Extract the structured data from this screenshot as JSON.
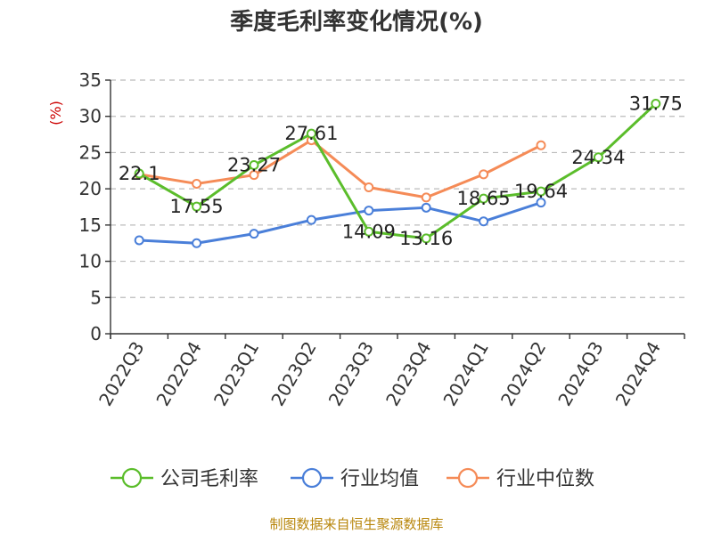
{
  "chart_data": {
    "type": "line",
    "title": "季度毛利率变化情况(%)",
    "ylabel": "(%)",
    "ylim": [
      0,
      35
    ],
    "yticks": [
      0,
      5,
      10,
      15,
      20,
      25,
      30,
      35
    ],
    "grid": "horizontal dashed",
    "legend_position": "bottom",
    "categories": [
      "2022Q3",
      "2022Q4",
      "2023Q1",
      "2023Q2",
      "2023Q3",
      "2023Q4",
      "2024Q1",
      "2024Q2",
      "2024Q3",
      "2024Q4"
    ],
    "series": [
      {
        "name": "公司毛利率",
        "color": "#5bbd2b",
        "values": [
          22.1,
          17.55,
          23.27,
          27.61,
          14.09,
          13.16,
          18.65,
          19.64,
          24.34,
          31.75
        ],
        "labels": [
          "22.1",
          "17.55",
          "23.27",
          "27.61",
          "14.09",
          "13.16",
          "18.65",
          "19.64",
          "24.34",
          "31.75"
        ]
      },
      {
        "name": "行业均值",
        "color": "#4a7fd9",
        "values": [
          12.9,
          12.5,
          13.8,
          15.7,
          17.0,
          17.4,
          15.5,
          18.1,
          null,
          null
        ]
      },
      {
        "name": "行业中位数",
        "color": "#f58b57",
        "values": [
          22.0,
          20.7,
          21.9,
          26.7,
          20.2,
          18.8,
          22.0,
          26.0,
          null,
          null
        ]
      }
    ],
    "source": "制图数据来自恒生聚源数据库"
  }
}
